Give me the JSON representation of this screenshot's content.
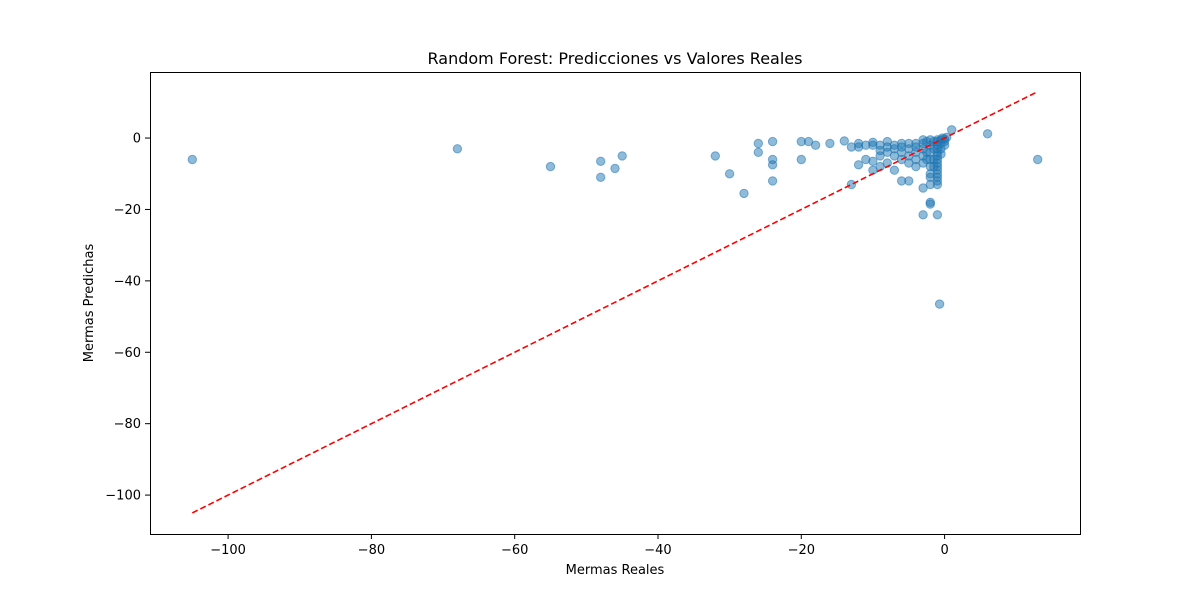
{
  "chart_data": {
    "type": "scatter",
    "title": "Random Forest: Predicciones vs Valores Reales",
    "xlabel": "Mermas Reales",
    "ylabel": "Mermas Predichas",
    "xlim": [
      -110.9,
      18.9
    ],
    "ylim": [
      -110.9,
      18.5
    ],
    "xticks": [
      -100,
      -80,
      -60,
      -40,
      -20,
      0
    ],
    "yticks": [
      0,
      -20,
      -40,
      -60,
      -80,
      -100
    ],
    "xtick_labels": [
      "−100",
      "−80",
      "−60",
      "−40",
      "−20",
      "0"
    ],
    "ytick_labels": [
      "0",
      "−20",
      "−40",
      "−60",
      "−80",
      "−100"
    ],
    "grid": false,
    "point_color": "#1f77b4",
    "reference_line_color": "#ff0000",
    "reference_line": {
      "x": [
        -105,
        13
      ],
      "y": [
        -105,
        13
      ]
    },
    "points": [
      [
        -105,
        -6
      ],
      [
        -68,
        -3
      ],
      [
        -55,
        -8
      ],
      [
        -48,
        -6.5
      ],
      [
        -48,
        -11
      ],
      [
        -46,
        -8.5
      ],
      [
        -45,
        -5
      ],
      [
        -32,
        -5
      ],
      [
        -30,
        -10
      ],
      [
        -28,
        -15.5
      ],
      [
        -26,
        -1.5
      ],
      [
        -26,
        -4
      ],
      [
        -24,
        -1
      ],
      [
        -24,
        -6
      ],
      [
        -24,
        -7.5
      ],
      [
        -24,
        -12
      ],
      [
        -20,
        -1
      ],
      [
        -20,
        -6
      ],
      [
        -19,
        -1
      ],
      [
        -18,
        -2
      ],
      [
        -16,
        -1.5
      ],
      [
        -14,
        -0.8
      ],
      [
        -13,
        -2.5
      ],
      [
        -13,
        -13
      ],
      [
        -12,
        -1.5
      ],
      [
        -12,
        -2.5
      ],
      [
        -12,
        -7.5
      ],
      [
        -11,
        -2
      ],
      [
        -11,
        -6
      ],
      [
        -10,
        -1.2
      ],
      [
        -10,
        -2
      ],
      [
        -10,
        -6.5
      ],
      [
        -10,
        -9
      ],
      [
        -9,
        -2
      ],
      [
        -9,
        -3.5
      ],
      [
        -9,
        -5
      ],
      [
        -9,
        -8
      ],
      [
        -8,
        -1
      ],
      [
        -8,
        -2.5
      ],
      [
        -8,
        -4
      ],
      [
        -8,
        -7
      ],
      [
        -7,
        -2
      ],
      [
        -7,
        -3
      ],
      [
        -7,
        -5
      ],
      [
        -7,
        -9
      ],
      [
        -6,
        -1.5
      ],
      [
        -6,
        -2.5
      ],
      [
        -6,
        -4
      ],
      [
        -6,
        -6
      ],
      [
        -6,
        -12
      ],
      [
        -5,
        -1.5
      ],
      [
        -5,
        -3
      ],
      [
        -5,
        -5
      ],
      [
        -5,
        -7
      ],
      [
        -5,
        -12
      ],
      [
        -4,
        -1.5
      ],
      [
        -4,
        -2.5
      ],
      [
        -4,
        -4
      ],
      [
        -4,
        -6
      ],
      [
        -4,
        -8
      ],
      [
        -3,
        -0.5
      ],
      [
        -3,
        -1.5
      ],
      [
        -3,
        -3
      ],
      [
        -3,
        -5
      ],
      [
        -3,
        -7
      ],
      [
        -3,
        -14
      ],
      [
        -3,
        -21.5
      ],
      [
        -2.5,
        -1
      ],
      [
        -2.5,
        -4
      ],
      [
        -2.5,
        -6
      ],
      [
        -2,
        -0.5
      ],
      [
        -2,
        -2
      ],
      [
        -2,
        -4
      ],
      [
        -2,
        -6
      ],
      [
        -2,
        -8
      ],
      [
        -2,
        -10
      ],
      [
        -2,
        -11
      ],
      [
        -2,
        -13
      ],
      [
        -2,
        -18
      ],
      [
        -2,
        -18.5
      ],
      [
        -1.5,
        -1
      ],
      [
        -1.5,
        -3
      ],
      [
        -1.5,
        -6
      ],
      [
        -1.5,
        -8
      ],
      [
        -1,
        -0.5
      ],
      [
        -1,
        -1
      ],
      [
        -1,
        -2
      ],
      [
        -1,
        -3
      ],
      [
        -1,
        -4
      ],
      [
        -1,
        -5
      ],
      [
        -1,
        -6
      ],
      [
        -1,
        -7
      ],
      [
        -1,
        -8
      ],
      [
        -1,
        -9
      ],
      [
        -1,
        -10
      ],
      [
        -1,
        -11
      ],
      [
        -1,
        -12
      ],
      [
        -1,
        -13
      ],
      [
        -1,
        -21.5
      ],
      [
        -0.7,
        -46.5
      ],
      [
        -0.5,
        -0.5
      ],
      [
        -0.5,
        -1.5
      ],
      [
        -0.5,
        -3
      ],
      [
        -0.5,
        -4.5
      ],
      [
        -0.3,
        0
      ],
      [
        0,
        -0.3
      ],
      [
        0,
        -1
      ],
      [
        0,
        -2
      ],
      [
        0.3,
        0.2
      ],
      [
        1,
        2.3
      ],
      [
        6,
        1.2
      ],
      [
        13,
        -6
      ]
    ]
  }
}
